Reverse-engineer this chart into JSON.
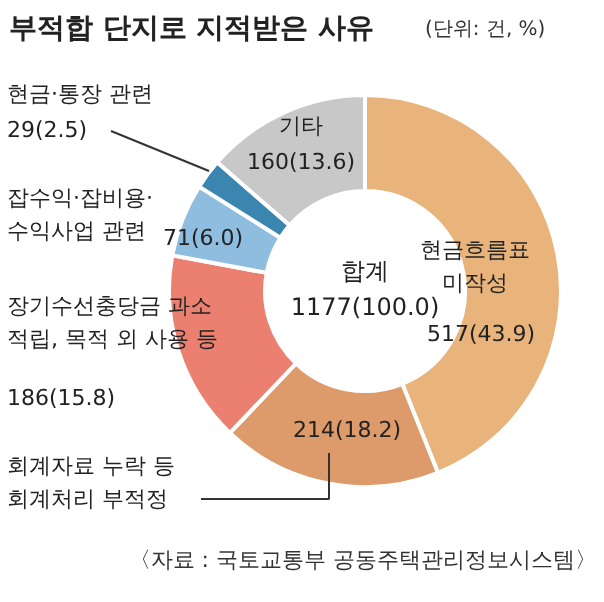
{
  "chart_data": {
    "type": "donut",
    "title": "부적합 단지로 지적받은 사유",
    "subtitle": "(단위: 건, %)",
    "categories": [
      "현금흐름표\n미작성",
      "회계자료 누락 등\n회계처리 부적정",
      "장기수선충당금 과소\n적립, 목적 외 사용 등",
      "잡수익·잡비용·\n수익사업 관련",
      "현금·통장 관련",
      "기타"
    ],
    "values": [
      517,
      214,
      186,
      71,
      29,
      160
    ],
    "colors": [
      "#e8b47c",
      "#dd9a6a",
      "#ec8070",
      "#8fbde0",
      "#3a86b0",
      "#c8c8c8"
    ],
    "value_labels": [
      "517(43.9)",
      "214(18.2)",
      "186(15.8)",
      "71(6.0)",
      "29(2.5)",
      "160(13.6)"
    ],
    "annotations": [
      "합계\n1177(100.0)",
      "〈자료 : 국토교통부 공동주택관리정보시스템〉"
    ],
    "data_labels": false
  }
}
